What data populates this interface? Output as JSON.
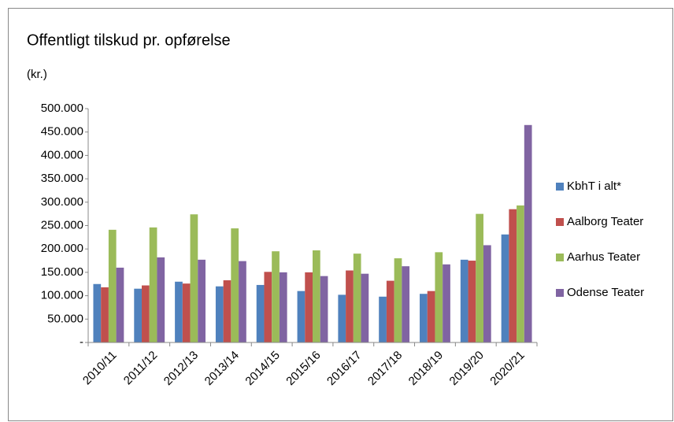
{
  "chart_data": {
    "type": "bar",
    "title": "Offentligt tilskud pr. opførelse",
    "y_label": "(kr.)",
    "categories": [
      "2010/11",
      "2011/12",
      "2012/13",
      "2013/14",
      "2014/15",
      "2015/16",
      "2016/17",
      "2017/18",
      "2018/19",
      "2019/20",
      "2020/21"
    ],
    "series": [
      {
        "name": "KbhT i alt*",
        "color": "#4f81bd",
        "values": [
          125000,
          115000,
          130000,
          120000,
          123000,
          110000,
          102000,
          98000,
          104000,
          177000,
          231000
        ]
      },
      {
        "name": "Aalborg Teater",
        "color": "#c0504d",
        "values": [
          118000,
          122000,
          126000,
          133000,
          151000,
          150000,
          154000,
          132000,
          110000,
          175000,
          285000
        ]
      },
      {
        "name": "Aarhus Teater",
        "color": "#9bbb59",
        "values": [
          241000,
          246000,
          274000,
          244000,
          195000,
          197000,
          190000,
          180000,
          193000,
          275000,
          293000
        ]
      },
      {
        "name": "Odense Teater",
        "color": "#8064a2",
        "values": [
          160000,
          182000,
          177000,
          174000,
          150000,
          142000,
          147000,
          163000,
          167000,
          208000,
          465000
        ]
      }
    ],
    "ylim": [
      0,
      500000
    ],
    "yticks": [
      {
        "value": 0,
        "label": "-"
      },
      {
        "value": 50000,
        "label": "50.000"
      },
      {
        "value": 100000,
        "label": "100.000"
      },
      {
        "value": 150000,
        "label": "150.000"
      },
      {
        "value": 200000,
        "label": "200.000"
      },
      {
        "value": 250000,
        "label": "250.000"
      },
      {
        "value": 300000,
        "label": "300.000"
      },
      {
        "value": 350000,
        "label": "350.000"
      },
      {
        "value": 400000,
        "label": "400.000"
      },
      {
        "value": 450000,
        "label": "450.000"
      },
      {
        "value": 500000,
        "label": "500.000"
      }
    ],
    "grid": false,
    "legend": "right"
  }
}
